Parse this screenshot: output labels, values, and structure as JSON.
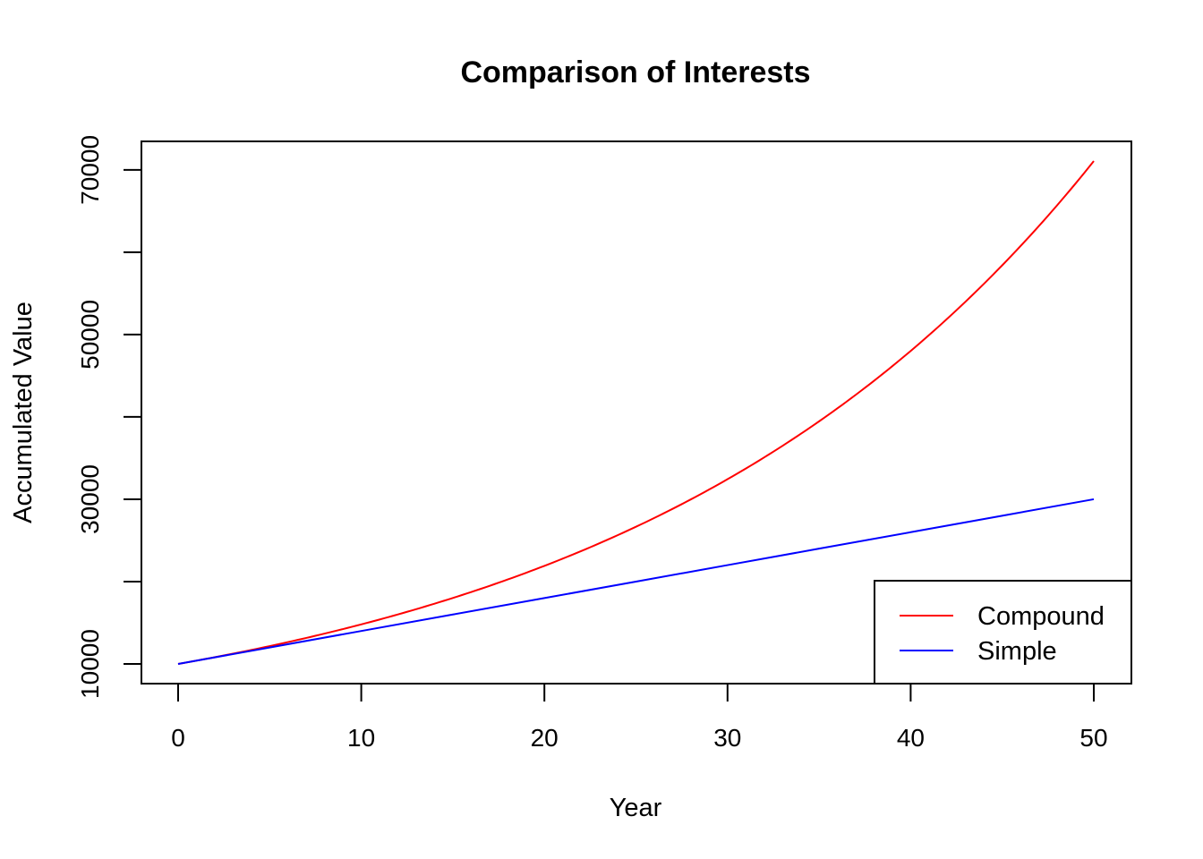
{
  "chart_data": {
    "type": "line",
    "title": "Comparison of Interests",
    "xlabel": "Year",
    "ylabel": "Accumulated Value",
    "xlim": [
      0,
      50
    ],
    "ylim": [
      10000,
      71070
    ],
    "x_ticks": [
      0,
      10,
      20,
      30,
      40,
      50
    ],
    "y_ticks": [
      10000,
      20000,
      30000,
      40000,
      50000,
      60000,
      70000
    ],
    "y_tick_labels": [
      "10000",
      "30000",
      "50000",
      "70000"
    ],
    "grid": false,
    "legend_position": "bottom-right",
    "x": [
      0,
      5,
      10,
      15,
      20,
      25,
      30,
      35,
      40,
      45,
      50
    ],
    "series": [
      {
        "name": "Compound",
        "color": "#ff0000",
        "values": [
          10000,
          12167,
          14802,
          18009,
          21911,
          26658,
          32434,
          39461,
          48010,
          58412,
          71067
        ]
      },
      {
        "name": "Simple",
        "color": "#0000ff",
        "values": [
          10000,
          12000,
          14000,
          16000,
          18000,
          20000,
          22000,
          24000,
          26000,
          28000,
          30000
        ]
      }
    ]
  }
}
